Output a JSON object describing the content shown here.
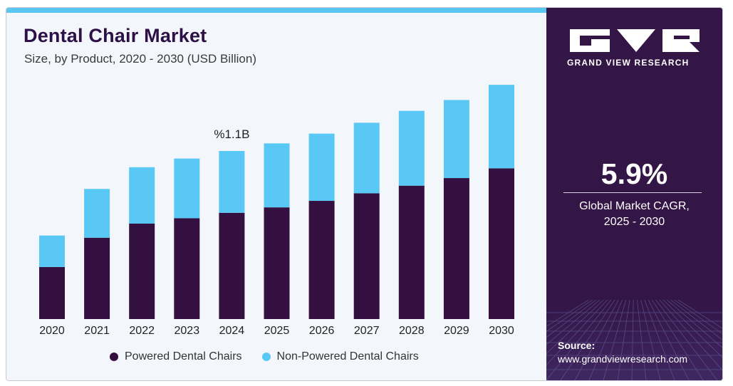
{
  "header": {
    "title": "Dental Chair Market",
    "subtitle": "Size, by Product, 2020 - 2030 (USD Billion)"
  },
  "annotation": {
    "text": "%1.1B",
    "category": "2024"
  },
  "legend": {
    "items": [
      {
        "label": "Powered Dental Chairs",
        "color": "#33103f"
      },
      {
        "label": "Non-Powered Dental Chairs",
        "color": "#5ac8f5"
      }
    ]
  },
  "chart_data": {
    "type": "bar",
    "stacked": true,
    "title": "Dental Chair Market",
    "subtitle": "Size, by Product, 2020 - 2030 (USD Billion)",
    "categories": [
      "2020",
      "2021",
      "2022",
      "2023",
      "2024",
      "2025",
      "2026",
      "2027",
      "2028",
      "2029",
      "2030"
    ],
    "series": [
      {
        "name": "Powered Dental Chairs",
        "color": "#33103f",
        "values": [
          0.48,
          0.75,
          0.88,
          0.93,
          0.98,
          1.03,
          1.09,
          1.16,
          1.23,
          1.3,
          1.39
        ]
      },
      {
        "name": "Non-Powered Dental Chairs",
        "color": "#5ac8f5",
        "values": [
          0.29,
          0.45,
          0.52,
          0.55,
          0.57,
          0.59,
          0.62,
          0.65,
          0.69,
          0.72,
          0.77
        ]
      }
    ],
    "ylim": [
      0,
      2.2
    ],
    "grid": false,
    "legend_position": "bottom"
  },
  "sidebar": {
    "logo_text": "GRAND VIEW RESEARCH",
    "cagr_value": "5.9%",
    "cagr_label_line1": "Global Market CAGR,",
    "cagr_label_line2": "2025 - 2030",
    "source_label": "Source:",
    "source_url": "www.grandviewresearch.com"
  }
}
